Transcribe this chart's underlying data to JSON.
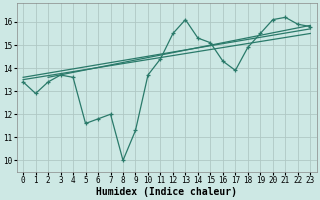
{
  "xlabel": "Humidex (Indice chaleur)",
  "background_color": "#cde8e4",
  "grid_color": "#b0c8c4",
  "line_color": "#2a7a6a",
  "xlim": [
    -0.5,
    23.5
  ],
  "ylim": [
    9.5,
    16.8
  ],
  "xticks": [
    0,
    1,
    2,
    3,
    4,
    5,
    6,
    7,
    8,
    9,
    10,
    11,
    12,
    13,
    14,
    15,
    16,
    17,
    18,
    19,
    20,
    21,
    22,
    23
  ],
  "yticks": [
    10,
    11,
    12,
    13,
    14,
    15,
    16
  ],
  "series1_x": [
    0,
    1,
    2,
    3,
    4,
    5,
    6,
    7,
    8,
    9,
    10,
    11,
    12,
    13,
    14,
    15,
    16,
    17,
    18,
    19,
    20,
    21,
    22,
    23
  ],
  "series1_y": [
    13.4,
    12.9,
    13.4,
    13.7,
    13.6,
    11.6,
    11.8,
    12.0,
    10.0,
    11.3,
    13.7,
    14.4,
    15.5,
    16.1,
    15.3,
    15.1,
    14.3,
    13.9,
    14.9,
    15.5,
    16.1,
    16.2,
    15.9,
    15.8
  ],
  "trend1_x": [
    0,
    23
  ],
  "trend1_y": [
    13.5,
    15.5
  ],
  "trend2_x": [
    0,
    23
  ],
  "trend2_y": [
    13.6,
    15.7
  ],
  "trend3_x": [
    2,
    23
  ],
  "trend3_y": [
    13.6,
    15.85
  ],
  "fontsize_xlabel": 7,
  "tick_fontsize": 5.5,
  "xlabel_fontweight": "bold"
}
